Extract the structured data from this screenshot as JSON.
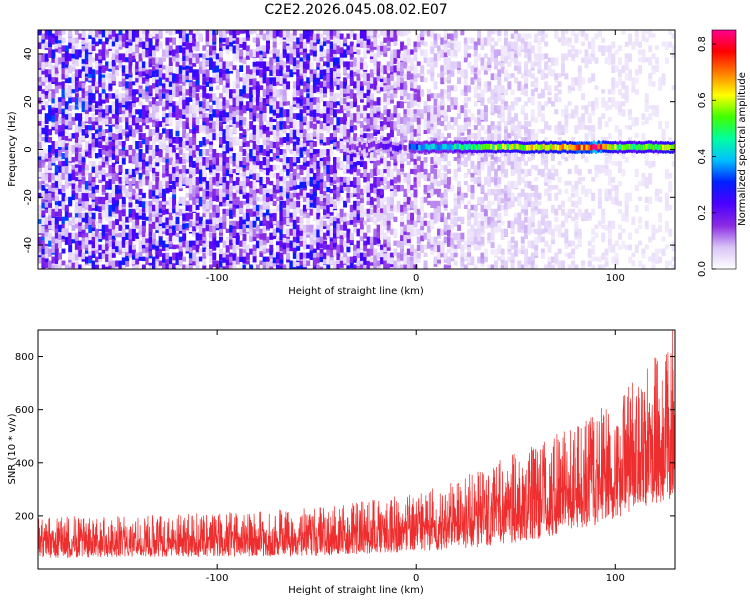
{
  "title": "C2E2.2026.045.08.02.E07",
  "colors": {
    "snr_line": "#ee2e2e",
    "cmap_stops": [
      "#ffffff",
      "#d9c4f7",
      "#8a2be2",
      "#4b00ff",
      "#0020ff",
      "#00c0ff",
      "#00ffa0",
      "#40ff00",
      "#ffff00",
      "#ff8000",
      "#ff0000",
      "#ff0090"
    ]
  },
  "chart_data": [
    {
      "type": "heatmap",
      "title": "C2E2.2026.045.08.02.E07",
      "xlabel": "Height of straight line (km)",
      "ylabel": "Frequency (Hz)",
      "xlim": [
        -190,
        130
      ],
      "ylim": [
        -50,
        50
      ],
      "xticks": [
        -100,
        0,
        100
      ],
      "xtick_labels": [
        "-100",
        "0",
        "100"
      ],
      "yticks": [
        -40,
        -20,
        0,
        20,
        40
      ],
      "ytick_labels": [
        "-40",
        "-20",
        "0",
        "20",
        "40"
      ],
      "colorbar": {
        "label": "Normalized spectral amplitude",
        "range": [
          0.0,
          0.85
        ],
        "ticks": [
          0.0,
          0.2,
          0.4,
          0.6,
          0.8
        ],
        "tick_labels": [
          "0.0",
          "0.2",
          "0.4",
          "0.6",
          "0.8"
        ]
      },
      "noise_amplitude": {
        "height_km": [
          -190,
          -40,
          0,
          30,
          80,
          130
        ],
        "amplitude": [
          0.18,
          0.16,
          0.08,
          0.06,
          0.03,
          0.02
        ]
      },
      "signal_band": {
        "frequency_hz": 1,
        "height_km": [
          -35,
          -20,
          -15,
          -10,
          0,
          20,
          40,
          60,
          80,
          90,
          100,
          105,
          130
        ],
        "amplitude": [
          0.15,
          0.18,
          0.2,
          0.25,
          0.35,
          0.45,
          0.55,
          0.6,
          0.65,
          0.8,
          0.55,
          0.5,
          0.6
        ]
      }
    },
    {
      "type": "line",
      "xlabel": "Height of straight line (km)",
      "ylabel": "SNR (10 * v/v)",
      "xlim": [
        -190,
        130
      ],
      "ylim": [
        0,
        900
      ],
      "xticks": [
        -100,
        0,
        100
      ],
      "xtick_labels": [
        "-100",
        "0",
        "100"
      ],
      "yticks": [
        200,
        400,
        600,
        800
      ],
      "ytick_labels": [
        "200",
        "400",
        "600",
        "800"
      ],
      "series": [
        {
          "name": "SNR",
          "x": [
            -190,
            -150,
            -100,
            -50,
            0,
            30,
            60,
            90,
            110,
            130
          ],
          "mean": [
            100,
            105,
            110,
            120,
            150,
            190,
            250,
            330,
            420,
            520
          ],
          "spread": [
            60,
            60,
            65,
            70,
            85,
            110,
            140,
            170,
            200,
            260
          ]
        }
      ]
    }
  ]
}
